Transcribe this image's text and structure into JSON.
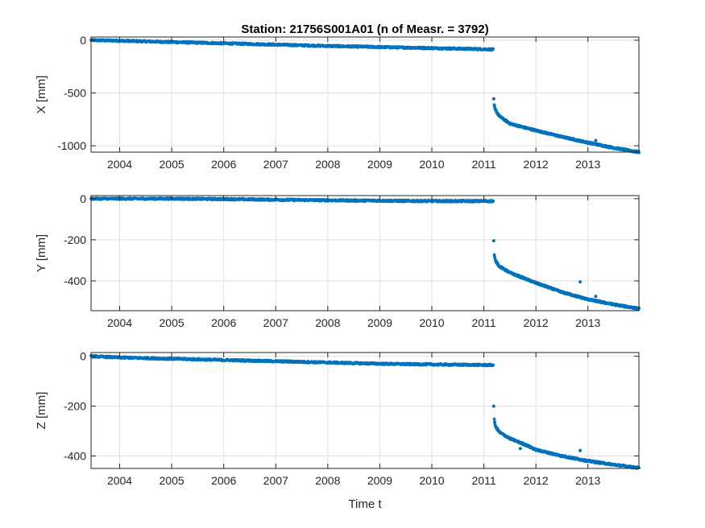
{
  "chart_data": [
    {
      "type": "scatter",
      "title": "Station: 21756S001A01 (n of Measr. = 3792)",
      "ylabel": "X [mm]",
      "xlabel": "",
      "xlim": [
        2003.45,
        2013.98
      ],
      "ylim": [
        -1060,
        30
      ],
      "xticks": [
        2004,
        2005,
        2006,
        2007,
        2008,
        2009,
        2010,
        2011,
        2012,
        2013
      ],
      "yticks": [
        0,
        -500,
        -1000
      ],
      "grid": true,
      "color": "#0072BD",
      "segments": [
        {
          "x": [
            2003.45,
            2004.0,
            2005.0,
            2006.0,
            2007.0,
            2008.0,
            2009.0,
            2010.0,
            2011.0,
            2011.18
          ],
          "y": [
            0,
            -5,
            -18,
            -30,
            -42,
            -55,
            -65,
            -75,
            -85,
            -88
          ]
        },
        {
          "x": [
            2011.2,
            2011.22,
            2011.3,
            2011.5,
            2011.8,
            2012.0,
            2012.5,
            2013.0,
            2013.5,
            2013.98
          ],
          "y": [
            -620,
            -660,
            -720,
            -790,
            -830,
            -855,
            -915,
            -970,
            -1020,
            -1060
          ]
        }
      ],
      "outliers": [
        {
          "x": 2011.19,
          "y": -555
        },
        {
          "x": 2013.15,
          "y": -950
        }
      ]
    },
    {
      "type": "scatter",
      "ylabel": "Y [mm]",
      "xlabel": "",
      "xlim": [
        2003.45,
        2013.98
      ],
      "ylim": [
        -545,
        15
      ],
      "xticks": [
        2004,
        2005,
        2006,
        2007,
        2008,
        2009,
        2010,
        2011,
        2012,
        2013
      ],
      "yticks": [
        0,
        -200,
        -400
      ],
      "grid": true,
      "color": "#0072BD",
      "segments": [
        {
          "x": [
            2003.45,
            2004.0,
            2005.0,
            2006.0,
            2007.0,
            2008.0,
            2009.0,
            2010.0,
            2011.0,
            2011.18
          ],
          "y": [
            0,
            0,
            0,
            -2,
            -5,
            -8,
            -10,
            -12,
            -12,
            -12
          ]
        },
        {
          "x": [
            2011.2,
            2011.22,
            2011.3,
            2011.5,
            2011.8,
            2012.0,
            2012.5,
            2013.0,
            2013.5,
            2013.98
          ],
          "y": [
            -275,
            -300,
            -330,
            -360,
            -390,
            -410,
            -455,
            -490,
            -515,
            -535
          ]
        }
      ],
      "outliers": [
        {
          "x": 2011.19,
          "y": -205
        },
        {
          "x": 2012.85,
          "y": -405
        },
        {
          "x": 2013.15,
          "y": -475
        }
      ]
    },
    {
      "type": "scatter",
      "ylabel": "Z [mm]",
      "xlabel": "Time t",
      "xlim": [
        2003.45,
        2013.98
      ],
      "ylim": [
        -450,
        15
      ],
      "xticks": [
        2004,
        2005,
        2006,
        2007,
        2008,
        2009,
        2010,
        2011,
        2012,
        2013
      ],
      "yticks": [
        0,
        -200,
        -400
      ],
      "grid": true,
      "color": "#0072BD",
      "segments": [
        {
          "x": [
            2003.45,
            2004.0,
            2005.0,
            2006.0,
            2007.0,
            2008.0,
            2009.0,
            2010.0,
            2011.0,
            2011.18
          ],
          "y": [
            0,
            -5,
            -10,
            -15,
            -20,
            -25,
            -30,
            -33,
            -35,
            -35
          ]
        },
        {
          "x": [
            2011.2,
            2011.22,
            2011.3,
            2011.5,
            2011.8,
            2012.0,
            2012.5,
            2013.0,
            2013.5,
            2013.98
          ],
          "y": [
            -255,
            -280,
            -305,
            -330,
            -355,
            -375,
            -400,
            -420,
            -435,
            -448
          ]
        }
      ],
      "outliers": [
        {
          "x": 2011.19,
          "y": -200
        },
        {
          "x": 2011.7,
          "y": -370
        },
        {
          "x": 2012.85,
          "y": -378
        }
      ]
    }
  ]
}
